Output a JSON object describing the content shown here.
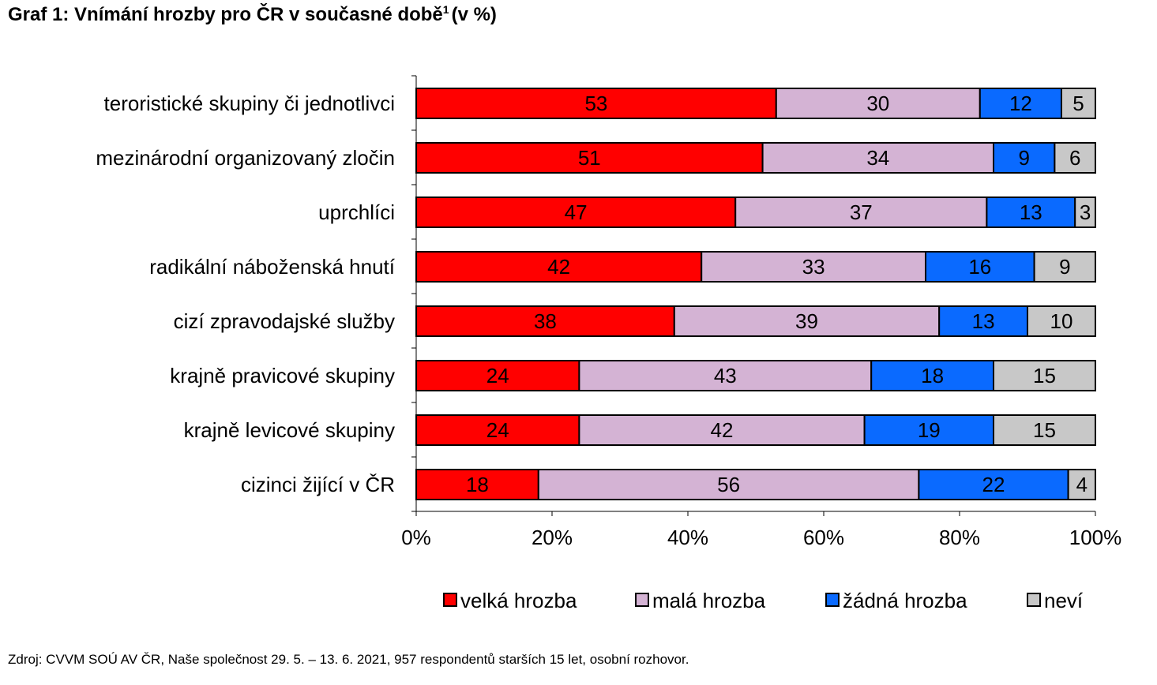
{
  "title": {
    "main": "Graf 1: Vnímání hrozby pro ČR v současné době",
    "footnote_mark": "1",
    "suffix": "(v %)"
  },
  "source": "Zdroj: CVVM SOÚ AV ČR, Naše společnost 29. 5. – 13. 6. 2021, 957 respondentů starších 15 let, osobní rozhovor.",
  "chart_data": {
    "type": "bar",
    "orientation": "horizontal",
    "stacked": true,
    "percent_stacked": true,
    "categories": [
      "teroristické skupiny či jednotlivci",
      "mezinárodní organizovaný zločin",
      "uprchlíci",
      "radikální náboženská hnutí",
      "cizí zpravodajské služby",
      "krajně pravicové skupiny",
      "krajně levicové skupiny",
      "cizinci žijící v ČR"
    ],
    "series": [
      {
        "name": "velká hrozba",
        "color": "#ff0000",
        "values": [
          53,
          51,
          47,
          42,
          38,
          24,
          24,
          18
        ]
      },
      {
        "name": "malá hrozba",
        "color": "#d4b3d4",
        "values": [
          30,
          34,
          37,
          33,
          39,
          43,
          42,
          56
        ]
      },
      {
        "name": "žádná hrozba",
        "color": "#0a6aff",
        "values": [
          12,
          9,
          13,
          16,
          13,
          18,
          19,
          22
        ]
      },
      {
        "name": "neví",
        "color": "#c8c8c8",
        "values": [
          5,
          6,
          3,
          9,
          10,
          15,
          15,
          4
        ]
      }
    ],
    "x_ticks": [
      "0%",
      "20%",
      "40%",
      "60%",
      "80%",
      "100%"
    ],
    "xlim": [
      0,
      100
    ],
    "legend_position": "bottom",
    "grid": false
  }
}
